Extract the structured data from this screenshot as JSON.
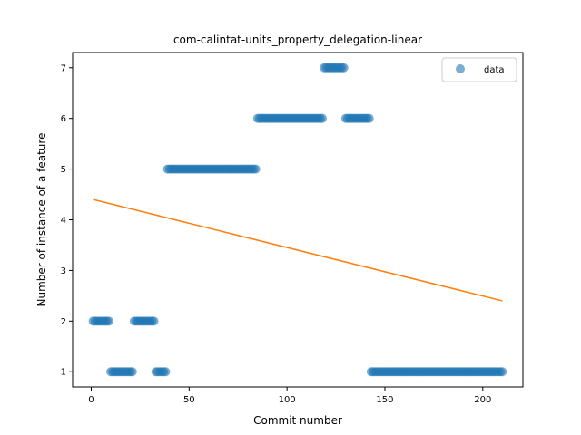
{
  "chart_data": {
    "type": "scatter",
    "title": "com-calintat-units_property_delegation-linear",
    "xlabel": "Commit number",
    "ylabel": "Number of instance of a feature",
    "xlim": [
      -9.5,
      220.5
    ],
    "ylim": [
      0.7,
      7.3
    ],
    "xticks": [
      0,
      50,
      100,
      150,
      200
    ],
    "yticks": [
      1,
      2,
      3,
      4,
      5,
      6,
      7
    ],
    "legend": {
      "placement": "top-right",
      "entries": [
        "data"
      ]
    },
    "colors": {
      "data": "#1f77b4",
      "fit": "#ff7f0e"
    },
    "segments": [
      {
        "x_start": 1,
        "x_end": 9,
        "y": 2
      },
      {
        "x_start": 10,
        "x_end": 21,
        "y": 1
      },
      {
        "x_start": 22,
        "x_end": 32,
        "y": 2
      },
      {
        "x_start": 33,
        "x_end": 38,
        "y": 1
      },
      {
        "x_start": 39,
        "x_end": 84,
        "y": 5
      },
      {
        "x_start": 85,
        "x_end": 118,
        "y": 6
      },
      {
        "x_start": 119,
        "x_end": 129,
        "y": 7
      },
      {
        "x_start": 130,
        "x_end": 142,
        "y": 6
      },
      {
        "x_start": 143,
        "x_end": 210,
        "y": 1
      }
    ],
    "fit_line": {
      "x": [
        1,
        210
      ],
      "y": [
        4.4,
        2.4
      ]
    }
  }
}
